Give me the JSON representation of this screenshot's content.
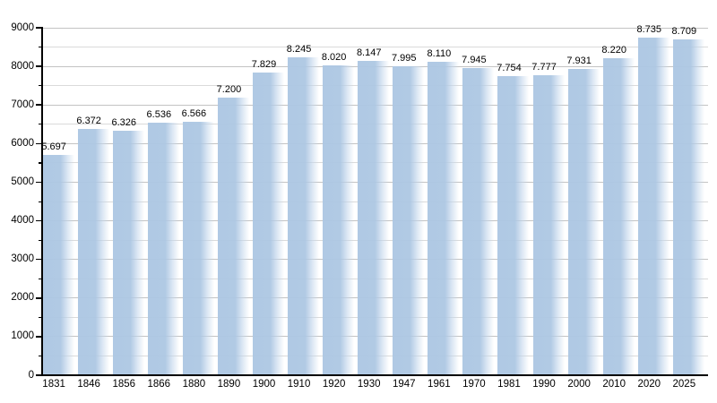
{
  "chart_data": {
    "type": "bar",
    "title": "",
    "xlabel": "",
    "ylabel": "",
    "categories": [
      "1831",
      "1846",
      "1856",
      "1866",
      "1880",
      "1890",
      "1900",
      "1910",
      "1920",
      "1930",
      "1947",
      "1961",
      "1970",
      "1981",
      "1990",
      "2000",
      "2010",
      "2020",
      "2025"
    ],
    "values": [
      5697,
      6372,
      6326,
      6536,
      6566,
      7200,
      7829,
      8245,
      8020,
      8147,
      7995,
      8110,
      7945,
      7754,
      7777,
      7931,
      8220,
      8735,
      8709
    ],
    "value_labels": [
      "5.697",
      "6.372",
      "6.326",
      "6.536",
      "6.566",
      "7.200",
      "7.829",
      "8.245",
      "8.020",
      "8.147",
      "7.995",
      "8.110",
      "7.945",
      "7.754",
      "7.777",
      "7.931",
      "8.220",
      "8.735",
      "8.709"
    ],
    "ylim": [
      0,
      9000
    ],
    "y_tick_labels": [
      "0",
      "1000",
      "2000",
      "3000",
      "4000",
      "5000",
      "6000",
      "7000",
      "8000",
      "9000"
    ],
    "y_major_step": 1000,
    "y_minor_step": 500,
    "grid": "horizontal lines every 500, behind bars",
    "legend": "none",
    "colors": {
      "bar": "#afc8e4",
      "bar_fade_end": "#ffffff",
      "grid_major": "#c3c3c3",
      "grid_minor": "#dadada",
      "axis": "#000000",
      "text": "#000000",
      "background": "#ffffff"
    }
  }
}
